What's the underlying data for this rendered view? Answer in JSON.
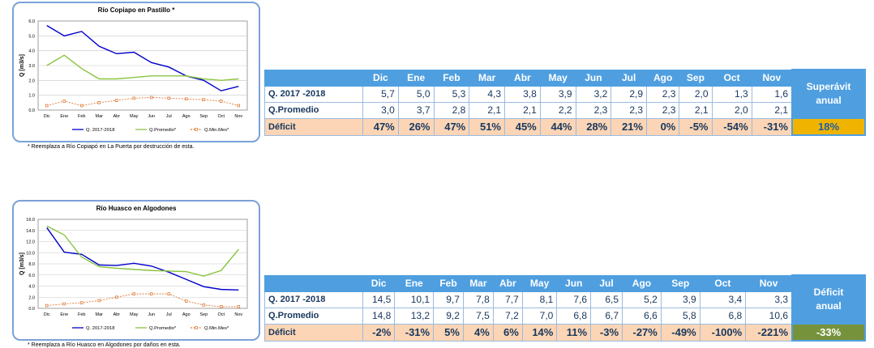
{
  "panels": [
    {
      "chart_data": {
        "type": "line",
        "title": "Río Copiapo en Pastillo  *",
        "ylabel": "Q [m3/s]",
        "xlabel": "",
        "categories": [
          "Dic",
          "Ene",
          "Feb",
          "Mar",
          "Abr",
          "May",
          "Jun",
          "Jul",
          "Ago",
          "Sep",
          "Oct",
          "Nov"
        ],
        "ylim": [
          0,
          6
        ],
        "yticks": [
          "0.0",
          "1.0",
          "2.0",
          "3.0",
          "4.0",
          "5.0",
          "6.0"
        ],
        "grid": true,
        "legend_position": "bottom",
        "series": [
          {
            "name": "Q. 2017-2018",
            "color": "#0000cc",
            "values": [
              5.7,
              5.0,
              5.3,
              4.3,
              3.8,
              3.9,
              3.2,
              2.9,
              2.3,
              2.0,
              1.3,
              1.6
            ]
          },
          {
            "name": "Q.Promedio*",
            "color": "#8ac43f",
            "values": [
              3.0,
              3.7,
              2.8,
              2.1,
              2.1,
              2.2,
              2.3,
              2.3,
              2.3,
              2.1,
              2.0,
              2.1
            ]
          },
          {
            "name": "Q.Min.Mes*",
            "color": "#e07b39",
            "values": [
              0.3,
              0.6,
              0.3,
              0.5,
              0.65,
              0.8,
              0.85,
              0.8,
              0.75,
              0.7,
              0.6,
              0.3
            ]
          }
        ]
      },
      "footnote": "* Reemplaza a Río Copiapó en La Puerta por destrucción de esta.",
      "table": {
        "months": [
          "Dic",
          "Ene",
          "Feb",
          "Mar",
          "Abr",
          "May",
          "Jun",
          "Jul",
          "Ago",
          "Sep",
          "Oct",
          "Nov"
        ],
        "row1_label": "Q. 2017 -2018",
        "row1": [
          "5,7",
          "5,0",
          "5,3",
          "4,3",
          "3,8",
          "3,9",
          "3,2",
          "2,9",
          "2,3",
          "2,0",
          "1,3",
          "1,6"
        ],
        "row2_label": "Q.Promedio",
        "row2": [
          "3,0",
          "3,7",
          "2,8",
          "2,1",
          "2,1",
          "2,2",
          "2,3",
          "2,3",
          "2,3",
          "2,1",
          "2,0",
          "2,1"
        ],
        "row3_label": "Déficit",
        "row3": [
          "47%",
          "26%",
          "47%",
          "51%",
          "45%",
          "44%",
          "28%",
          "21%",
          "0%",
          "-5%",
          "-54%",
          "-31%"
        ],
        "summary_label_1": "Superávit",
        "summary_label_2": "anual",
        "summary_value": "18%",
        "summary_color": "#f0b400",
        "summary_text_color": "#1f5fa8"
      }
    },
    {
      "chart_data": {
        "type": "line",
        "title": "Río Huasco en Algodones",
        "ylabel": "Q [m3/s]",
        "xlabel": "",
        "categories": [
          "Dic",
          "Ene",
          "Feb",
          "Mar",
          "Abr",
          "May",
          "Jun",
          "Jul",
          "Ago",
          "Sep",
          "Oct",
          "Nov"
        ],
        "ylim": [
          0,
          16
        ],
        "yticks": [
          "0.0",
          "2.0",
          "4.0",
          "6.0",
          "8.0",
          "10.0",
          "12.0",
          "14.0",
          "16.0"
        ],
        "grid": true,
        "legend_position": "bottom",
        "series": [
          {
            "name": "Q. 2017-2018",
            "color": "#0000cc",
            "values": [
              14.5,
              10.1,
              9.7,
              7.8,
              7.7,
              8.1,
              7.6,
              6.5,
              5.2,
              3.9,
              3.4,
              3.3
            ]
          },
          {
            "name": "Q.Promedio*",
            "color": "#8ac43f",
            "values": [
              14.8,
              13.2,
              9.2,
              7.5,
              7.2,
              7.0,
              6.8,
              6.7,
              6.6,
              5.8,
              6.8,
              10.6
            ]
          },
          {
            "name": "Q.Min.Mes*",
            "color": "#e07b39",
            "values": [
              0.5,
              0.8,
              1.0,
              1.4,
              2.0,
              2.6,
              2.6,
              2.6,
              1.3,
              0.6,
              0.3,
              0.3
            ]
          }
        ]
      },
      "footnote": "* Reemplaza a Río Huasco en Algodones por daños en esta.",
      "table": {
        "months": [
          "Dic",
          "Ene",
          "Feb",
          "Mar",
          "Abr",
          "May",
          "Jun",
          "Jul",
          "Ago",
          "Sep",
          "Oct",
          "Nov"
        ],
        "row1_label": "Q. 2017 -2018",
        "row1": [
          "14,5",
          "10,1",
          "9,7",
          "7,8",
          "7,7",
          "8,1",
          "7,6",
          "6,5",
          "5,2",
          "3,9",
          "3,4",
          "3,3"
        ],
        "row2_label": "Q.Promedio",
        "row2": [
          "14,8",
          "13,2",
          "9,2",
          "7,5",
          "7,2",
          "7,0",
          "6,8",
          "6,7",
          "6,6",
          "5,8",
          "6,8",
          "10,6"
        ],
        "row3_label": "Déficit",
        "row3": [
          "-2%",
          "-31%",
          "5%",
          "4%",
          "6%",
          "14%",
          "11%",
          "-3%",
          "-27%",
          "-49%",
          "-100%",
          "-221%"
        ],
        "summary_label_1": "Déficit",
        "summary_label_2": "anual",
        "summary_value": "-33%",
        "summary_color": "#76933c",
        "summary_text_color": "#ffffff"
      }
    }
  ]
}
